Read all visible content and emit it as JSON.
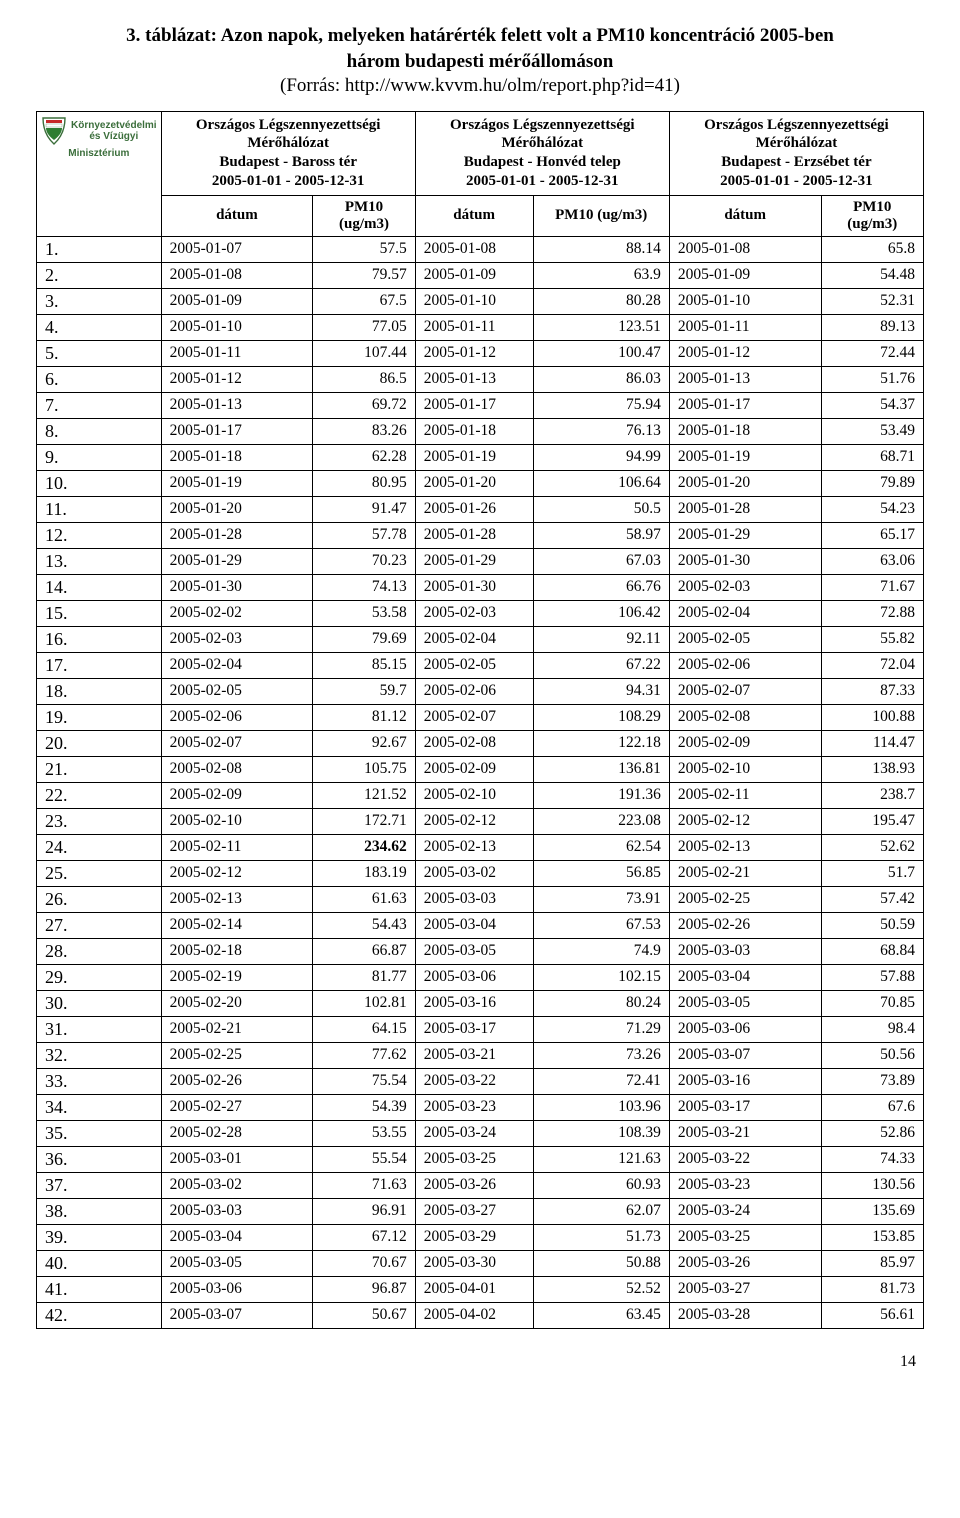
{
  "title": "3. táblázat: Azon napok, melyeken határérték felett volt a PM10 koncentráció 2005-ben",
  "subtitle": "három budapesti mérőállomáson",
  "source": "(Forrás: http://www.kvvm.hu/olm/report.php?id=41)",
  "logo": {
    "line1": "Környezetvédelmi",
    "line2": "és Vízügyi",
    "line3": "Minisztérium"
  },
  "stations": [
    {
      "l1": "Országos Légszennyezettségi",
      "l2": "Mérőhálózat",
      "l3": "Budapest - Baross tér",
      "l4": "2005-01-01 - 2005-12-31"
    },
    {
      "l1": "Országos Légszennyezettségi",
      "l2": "Mérőhálózat",
      "l3": "Budapest - Honvéd telep",
      "l4": "2005-01-01 - 2005-12-31"
    },
    {
      "l1": "Országos Légszennyezettségi",
      "l2": "Mérőhálózat",
      "l3": "Budapest - Erzsébet tér",
      "l4": "2005-01-01 - 2005-12-31"
    }
  ],
  "colheads": {
    "datum": "dátum",
    "pm10": "PM10",
    "ugm3": "(ug/m3)",
    "pm10ug": "PM10 (ug/m3)"
  },
  "rows": [
    {
      "n": "1.",
      "d1": "2005-01-07",
      "v1": "57.5",
      "d2": "2005-01-08",
      "v2": "88.14",
      "d3": "2005-01-08",
      "v3": "65.8"
    },
    {
      "n": "2.",
      "d1": "2005-01-08",
      "v1": "79.57",
      "d2": "2005-01-09",
      "v2": "63.9",
      "d3": "2005-01-09",
      "v3": "54.48"
    },
    {
      "n": "3.",
      "d1": "2005-01-09",
      "v1": "67.5",
      "d2": "2005-01-10",
      "v2": "80.28",
      "d3": "2005-01-10",
      "v3": "52.31"
    },
    {
      "n": "4.",
      "d1": "2005-01-10",
      "v1": "77.05",
      "d2": "2005-01-11",
      "v2": "123.51",
      "d3": "2005-01-11",
      "v3": "89.13"
    },
    {
      "n": "5.",
      "d1": "2005-01-11",
      "v1": "107.44",
      "d2": "2005-01-12",
      "v2": "100.47",
      "d3": "2005-01-12",
      "v3": "72.44"
    },
    {
      "n": "6.",
      "d1": "2005-01-12",
      "v1": "86.5",
      "d2": "2005-01-13",
      "v2": "86.03",
      "d3": "2005-01-13",
      "v3": "51.76"
    },
    {
      "n": "7.",
      "d1": "2005-01-13",
      "v1": "69.72",
      "d2": "2005-01-17",
      "v2": "75.94",
      "d3": "2005-01-17",
      "v3": "54.37"
    },
    {
      "n": "8.",
      "d1": "2005-01-17",
      "v1": "83.26",
      "d2": "2005-01-18",
      "v2": "76.13",
      "d3": "2005-01-18",
      "v3": "53.49"
    },
    {
      "n": "9.",
      "d1": "2005-01-18",
      "v1": "62.28",
      "d2": "2005-01-19",
      "v2": "94.99",
      "d3": "2005-01-19",
      "v3": "68.71"
    },
    {
      "n": "10.",
      "d1": "2005-01-19",
      "v1": "80.95",
      "d2": "2005-01-20",
      "v2": "106.64",
      "d3": "2005-01-20",
      "v3": "79.89"
    },
    {
      "n": "11.",
      "d1": "2005-01-20",
      "v1": "91.47",
      "d2": "2005-01-26",
      "v2": "50.5",
      "d3": "2005-01-28",
      "v3": "54.23"
    },
    {
      "n": "12.",
      "d1": "2005-01-28",
      "v1": "57.78",
      "d2": "2005-01-28",
      "v2": "58.97",
      "d3": "2005-01-29",
      "v3": "65.17"
    },
    {
      "n": "13.",
      "d1": "2005-01-29",
      "v1": "70.23",
      "d2": "2005-01-29",
      "v2": "67.03",
      "d3": "2005-01-30",
      "v3": "63.06"
    },
    {
      "n": "14.",
      "d1": "2005-01-30",
      "v1": "74.13",
      "d2": "2005-01-30",
      "v2": "66.76",
      "d3": "2005-02-03",
      "v3": "71.67"
    },
    {
      "n": "15.",
      "d1": "2005-02-02",
      "v1": "53.58",
      "d2": "2005-02-03",
      "v2": "106.42",
      "d3": "2005-02-04",
      "v3": "72.88"
    },
    {
      "n": "16.",
      "d1": "2005-02-03",
      "v1": "79.69",
      "d2": "2005-02-04",
      "v2": "92.11",
      "d3": "2005-02-05",
      "v3": "55.82"
    },
    {
      "n": "17.",
      "d1": "2005-02-04",
      "v1": "85.15",
      "d2": "2005-02-05",
      "v2": "67.22",
      "d3": "2005-02-06",
      "v3": "72.04"
    },
    {
      "n": "18.",
      "d1": "2005-02-05",
      "v1": "59.7",
      "d2": "2005-02-06",
      "v2": "94.31",
      "d3": "2005-02-07",
      "v3": "87.33"
    },
    {
      "n": "19.",
      "d1": "2005-02-06",
      "v1": "81.12",
      "d2": "2005-02-07",
      "v2": "108.29",
      "d3": "2005-02-08",
      "v3": "100.88"
    },
    {
      "n": "20.",
      "d1": "2005-02-07",
      "v1": "92.67",
      "d2": "2005-02-08",
      "v2": "122.18",
      "d3": "2005-02-09",
      "v3": "114.47"
    },
    {
      "n": "21.",
      "d1": "2005-02-08",
      "v1": "105.75",
      "d2": "2005-02-09",
      "v2": "136.81",
      "d3": "2005-02-10",
      "v3": "138.93"
    },
    {
      "n": "22.",
      "d1": "2005-02-09",
      "v1": "121.52",
      "d2": "2005-02-10",
      "v2": "191.36",
      "d3": "2005-02-11",
      "v3": "238.7"
    },
    {
      "n": "23.",
      "d1": "2005-02-10",
      "v1": "172.71",
      "d2": "2005-02-12",
      "v2": "223.08",
      "d3": "2005-02-12",
      "v3": "195.47"
    },
    {
      "n": "24.",
      "d1": "2005-02-11",
      "v1": "234.62",
      "d2": "2005-02-13",
      "v2": "62.54",
      "d3": "2005-02-13",
      "v3": "52.62",
      "bold_v1": true
    },
    {
      "n": "25.",
      "d1": "2005-02-12",
      "v1": "183.19",
      "d2": "2005-03-02",
      "v2": "56.85",
      "d3": "2005-02-21",
      "v3": "51.7"
    },
    {
      "n": "26.",
      "d1": "2005-02-13",
      "v1": "61.63",
      "d2": "2005-03-03",
      "v2": "73.91",
      "d3": "2005-02-25",
      "v3": "57.42"
    },
    {
      "n": "27.",
      "d1": "2005-02-14",
      "v1": "54.43",
      "d2": "2005-03-04",
      "v2": "67.53",
      "d3": "2005-02-26",
      "v3": "50.59"
    },
    {
      "n": "28.",
      "d1": "2005-02-18",
      "v1": "66.87",
      "d2": "2005-03-05",
      "v2": "74.9",
      "d3": "2005-03-03",
      "v3": "68.84"
    },
    {
      "n": "29.",
      "d1": "2005-02-19",
      "v1": "81.77",
      "d2": "2005-03-06",
      "v2": "102.15",
      "d3": "2005-03-04",
      "v3": "57.88"
    },
    {
      "n": "30.",
      "d1": "2005-02-20",
      "v1": "102.81",
      "d2": "2005-03-16",
      "v2": "80.24",
      "d3": "2005-03-05",
      "v3": "70.85"
    },
    {
      "n": "31.",
      "d1": "2005-02-21",
      "v1": "64.15",
      "d2": "2005-03-17",
      "v2": "71.29",
      "d3": "2005-03-06",
      "v3": "98.4"
    },
    {
      "n": "32.",
      "d1": "2005-02-25",
      "v1": "77.62",
      "d2": "2005-03-21",
      "v2": "73.26",
      "d3": "2005-03-07",
      "v3": "50.56"
    },
    {
      "n": "33.",
      "d1": "2005-02-26",
      "v1": "75.54",
      "d2": "2005-03-22",
      "v2": "72.41",
      "d3": "2005-03-16",
      "v3": "73.89"
    },
    {
      "n": "34.",
      "d1": "2005-02-27",
      "v1": "54.39",
      "d2": "2005-03-23",
      "v2": "103.96",
      "d3": "2005-03-17",
      "v3": "67.6"
    },
    {
      "n": "35.",
      "d1": "2005-02-28",
      "v1": "53.55",
      "d2": "2005-03-24",
      "v2": "108.39",
      "d3": "2005-03-21",
      "v3": "52.86"
    },
    {
      "n": "36.",
      "d1": "2005-03-01",
      "v1": "55.54",
      "d2": "2005-03-25",
      "v2": "121.63",
      "d3": "2005-03-22",
      "v3": "74.33"
    },
    {
      "n": "37.",
      "d1": "2005-03-02",
      "v1": "71.63",
      "d2": "2005-03-26",
      "v2": "60.93",
      "d3": "2005-03-23",
      "v3": "130.56"
    },
    {
      "n": "38.",
      "d1": "2005-03-03",
      "v1": "96.91",
      "d2": "2005-03-27",
      "v2": "62.07",
      "d3": "2005-03-24",
      "v3": "135.69"
    },
    {
      "n": "39.",
      "d1": "2005-03-04",
      "v1": "67.12",
      "d2": "2005-03-29",
      "v2": "51.73",
      "d3": "2005-03-25",
      "v3": "153.85"
    },
    {
      "n": "40.",
      "d1": "2005-03-05",
      "v1": "70.67",
      "d2": "2005-03-30",
      "v2": "50.88",
      "d3": "2005-03-26",
      "v3": "85.97"
    },
    {
      "n": "41.",
      "d1": "2005-03-06",
      "v1": "96.87",
      "d2": "2005-04-01",
      "v2": "52.52",
      "d3": "2005-03-27",
      "v3": "81.73"
    },
    {
      "n": "42.",
      "d1": "2005-03-07",
      "v1": "50.67",
      "d2": "2005-04-02",
      "v2": "63.45",
      "d3": "2005-03-28",
      "v3": "56.61"
    }
  ],
  "pageNumber": "14"
}
